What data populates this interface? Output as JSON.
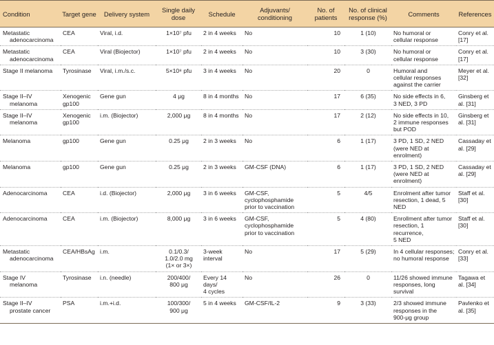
{
  "headers": [
    "Condition",
    "Target gene",
    "Delivery system",
    "Single daily dose",
    "Schedule",
    "Adjuvants/ conditioning",
    "No. of patients",
    "No. of clinical response (%)",
    "Comments",
    "References"
  ],
  "rows": [
    {
      "condition": [
        "Metastatic",
        "adenocarcinoma"
      ],
      "gene": [
        "CEA"
      ],
      "delivery": [
        "Viral, i.d."
      ],
      "dose": [
        "1×10⁷ pfu"
      ],
      "schedule": [
        "2 in 4 weeks"
      ],
      "adjuvants": [
        "No"
      ],
      "patients": "10",
      "response": "1 (10)",
      "comments": [
        "No humoral or",
        "cellular response"
      ],
      "refs": "Conry et al. [17]"
    },
    {
      "condition": [
        "Metastatic",
        "adenocarcinoma"
      ],
      "gene": [
        "CEA"
      ],
      "delivery": [
        "Viral (Biojector)"
      ],
      "dose": [
        "1×10⁷ pfu"
      ],
      "schedule": [
        "2 in 4 weeks"
      ],
      "adjuvants": [
        "No"
      ],
      "patients": "10",
      "response": "3 (30)",
      "comments": [
        "No humoral or",
        "cellular response"
      ],
      "refs": "Conry et al. [17]"
    },
    {
      "condition": [
        "Stage II melanoma"
      ],
      "gene": [
        "Tyrosinase"
      ],
      "delivery": [
        "Viral, i.m./s.c."
      ],
      "dose": [
        "5×10⁸ pfu"
      ],
      "schedule": [
        "3 in 4 weeks"
      ],
      "adjuvants": [
        "No"
      ],
      "patients": "20",
      "response": "0",
      "comments": [
        "Humoral and",
        "cellular responses",
        "against the carrier"
      ],
      "refs": "Meyer et al. [32]"
    },
    {
      "condition": [
        "Stage II–IV",
        "melanoma"
      ],
      "gene": [
        "Xenogenic",
        "gp100"
      ],
      "delivery": [
        "Gene gun"
      ],
      "dose": [
        "4 μg"
      ],
      "schedule": [
        "8 in 4 months"
      ],
      "adjuvants": [
        "No"
      ],
      "patients": "17",
      "response": "6 (35)",
      "comments": [
        "No side effects in 6,",
        "3 NED, 3 PD"
      ],
      "refs": "Ginsberg et al. [31]"
    },
    {
      "condition": [
        "Stage II–IV",
        "melanoma"
      ],
      "gene": [
        "Xenogenic",
        "gp100"
      ],
      "delivery": [
        "i.m. (Biojector)"
      ],
      "dose": [
        "2,000 μg"
      ],
      "schedule": [
        "8 in 4 months"
      ],
      "adjuvants": [
        "No"
      ],
      "patients": "17",
      "response": "2 (12)",
      "comments": [
        "No side effects in 10,",
        "2 immune responses",
        "but POD"
      ],
      "refs": "Ginsberg et al. [31]"
    },
    {
      "condition": [
        "Melanoma"
      ],
      "gene": [
        "gp100"
      ],
      "delivery": [
        "Gene gun"
      ],
      "dose": [
        "0.25 μg"
      ],
      "schedule": [
        "2 in 3 weeks"
      ],
      "adjuvants": [
        "No"
      ],
      "patients": "6",
      "response": "1 (17)",
      "comments": [
        "3 PD, 1 SD, 2 NED",
        "(were NED at enrolment)"
      ],
      "refs": "Cassaday et al. [29]"
    },
    {
      "condition": [
        "Melanoma"
      ],
      "gene": [
        "gp100"
      ],
      "delivery": [
        "Gene gun"
      ],
      "dose": [
        "0.25 μg"
      ],
      "schedule": [
        "2 in 3 weeks"
      ],
      "adjuvants": [
        "GM-CSF (DNA)"
      ],
      "patients": "6",
      "response": "1 (17)",
      "comments": [
        "3 PD, 1 SD, 2 NED",
        "(were NED at enrolment)"
      ],
      "refs": "Cassaday et al. [29]"
    },
    {
      "condition": [
        "Adenocarcinoma"
      ],
      "gene": [
        "CEA"
      ],
      "delivery": [
        "i.d. (Biojector)"
      ],
      "dose": [
        "2,000 μg"
      ],
      "schedule": [
        "3 in 6 weeks"
      ],
      "adjuvants": [
        "GM-CSF,",
        "cyclophosphamide",
        "prior to vaccination"
      ],
      "patients": "5",
      "response": "4/5",
      "comments": [
        "Enrolment after tumor",
        "resection, 1 dead, 5 NED"
      ],
      "refs": "Staff et al. [30]"
    },
    {
      "condition": [
        "Adenocarcinoma"
      ],
      "gene": [
        "CEA"
      ],
      "delivery": [
        "i.m. (Biojector)"
      ],
      "dose": [
        "8,000 μg"
      ],
      "schedule": [
        "3 in 6 weeks"
      ],
      "adjuvants": [
        "GM-CSF,",
        "cyclophosphamide",
        "prior to vaccination"
      ],
      "patients": "5",
      "response": "4 (80)",
      "comments": [
        "Enrollment after tumor",
        "resection, 1 recurrence,",
        "5 NED"
      ],
      "refs": "Staff et al. [30]"
    },
    {
      "condition": [
        "Metastatic",
        "adenocarcinoma"
      ],
      "gene": [
        "CEA/HBsAg"
      ],
      "delivery": [
        "i.m."
      ],
      "dose": [
        "0.1/0.3/",
        "1.0/2.0 mg",
        "(1× or 3×)"
      ],
      "schedule": [
        "3-week",
        "interval"
      ],
      "adjuvants": [
        "No"
      ],
      "patients": "17",
      "response": "5 (29)",
      "comments": [
        "In 4 cellular responses;",
        "no humoral response"
      ],
      "refs": "Conry et al. [33]"
    },
    {
      "condition": [
        "Stage IV",
        "melanoma"
      ],
      "gene": [
        "Tyrosinase"
      ],
      "delivery": [
        "i.n. (needle)"
      ],
      "dose": [
        "200/400/",
        "800 μg"
      ],
      "schedule": [
        "Every 14 days/",
        "4 cycles"
      ],
      "adjuvants": [
        "No"
      ],
      "patients": "26",
      "response": "0",
      "comments": [
        "11/26 showed immune",
        "responses, long survival"
      ],
      "refs": "Tagawa et al. [34]"
    },
    {
      "condition": [
        "Stage II–IV",
        "prostate cancer"
      ],
      "gene": [
        "PSA"
      ],
      "delivery": [
        "i.m.+i.d."
      ],
      "dose": [
        "100/300/",
        "900 μg"
      ],
      "schedule": [
        "5 in 4 weeks"
      ],
      "adjuvants": [
        "GM-CSF/IL-2"
      ],
      "patients": "9",
      "response": "3 (33)",
      "comments": [
        "2/3 showed immune",
        "responses in the",
        "900-μg group"
      ],
      "refs": "Pavlenko et al. [35]"
    }
  ]
}
